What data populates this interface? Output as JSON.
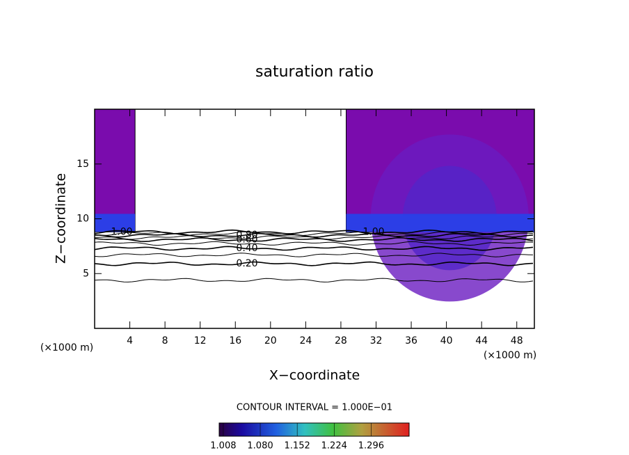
{
  "chart_data": {
    "type": "contour",
    "title": "saturation ratio",
    "x_label": "X−coordinate",
    "y_label": "Z−coordinate",
    "x_unit": "(×1000 m)",
    "y_unit": "(×1000 m)",
    "xlim": [
      0,
      50
    ],
    "ylim": [
      0,
      20
    ],
    "xticks": [
      4,
      8,
      12,
      16,
      20,
      24,
      28,
      32,
      36,
      40,
      44,
      48
    ],
    "yticks": [
      5,
      10,
      15
    ],
    "contours": {
      "levels": [
        0.1,
        0.2,
        0.3,
        0.4,
        0.5,
        0.6,
        0.7,
        0.8,
        0.9,
        1.0
      ],
      "z": [
        4.4,
        5.9,
        6.7,
        7.3,
        7.75,
        8.1,
        8.3,
        8.5,
        8.65,
        8.8
      ],
      "labeled": [
        null,
        "0.20",
        null,
        "0.40",
        null,
        "0.60",
        null,
        "0.80",
        null,
        "1.00"
      ]
    },
    "regions": [
      {
        "x": [
          0,
          4.6
        ],
        "z": [
          8.8,
          20
        ]
      },
      {
        "x": [
          28.6,
          50
        ],
        "z": [
          8.8,
          20
        ]
      }
    ],
    "fill_color": "#7a0cad",
    "band_color": "#2c3ee6",
    "annotation": "CONTOUR INTERVAL = 1.000E−01",
    "colorbar": {
      "clim": [
        1.0,
        1.37
      ],
      "ticks": [
        {
          "value": 1.008,
          "label": "1.008"
        },
        {
          "value": 1.08,
          "label": "1.080"
        },
        {
          "value": 1.152,
          "label": "1.152"
        },
        {
          "value": 1.224,
          "label": "1.224"
        },
        {
          "value": 1.296,
          "label": "1.296"
        }
      ]
    }
  }
}
